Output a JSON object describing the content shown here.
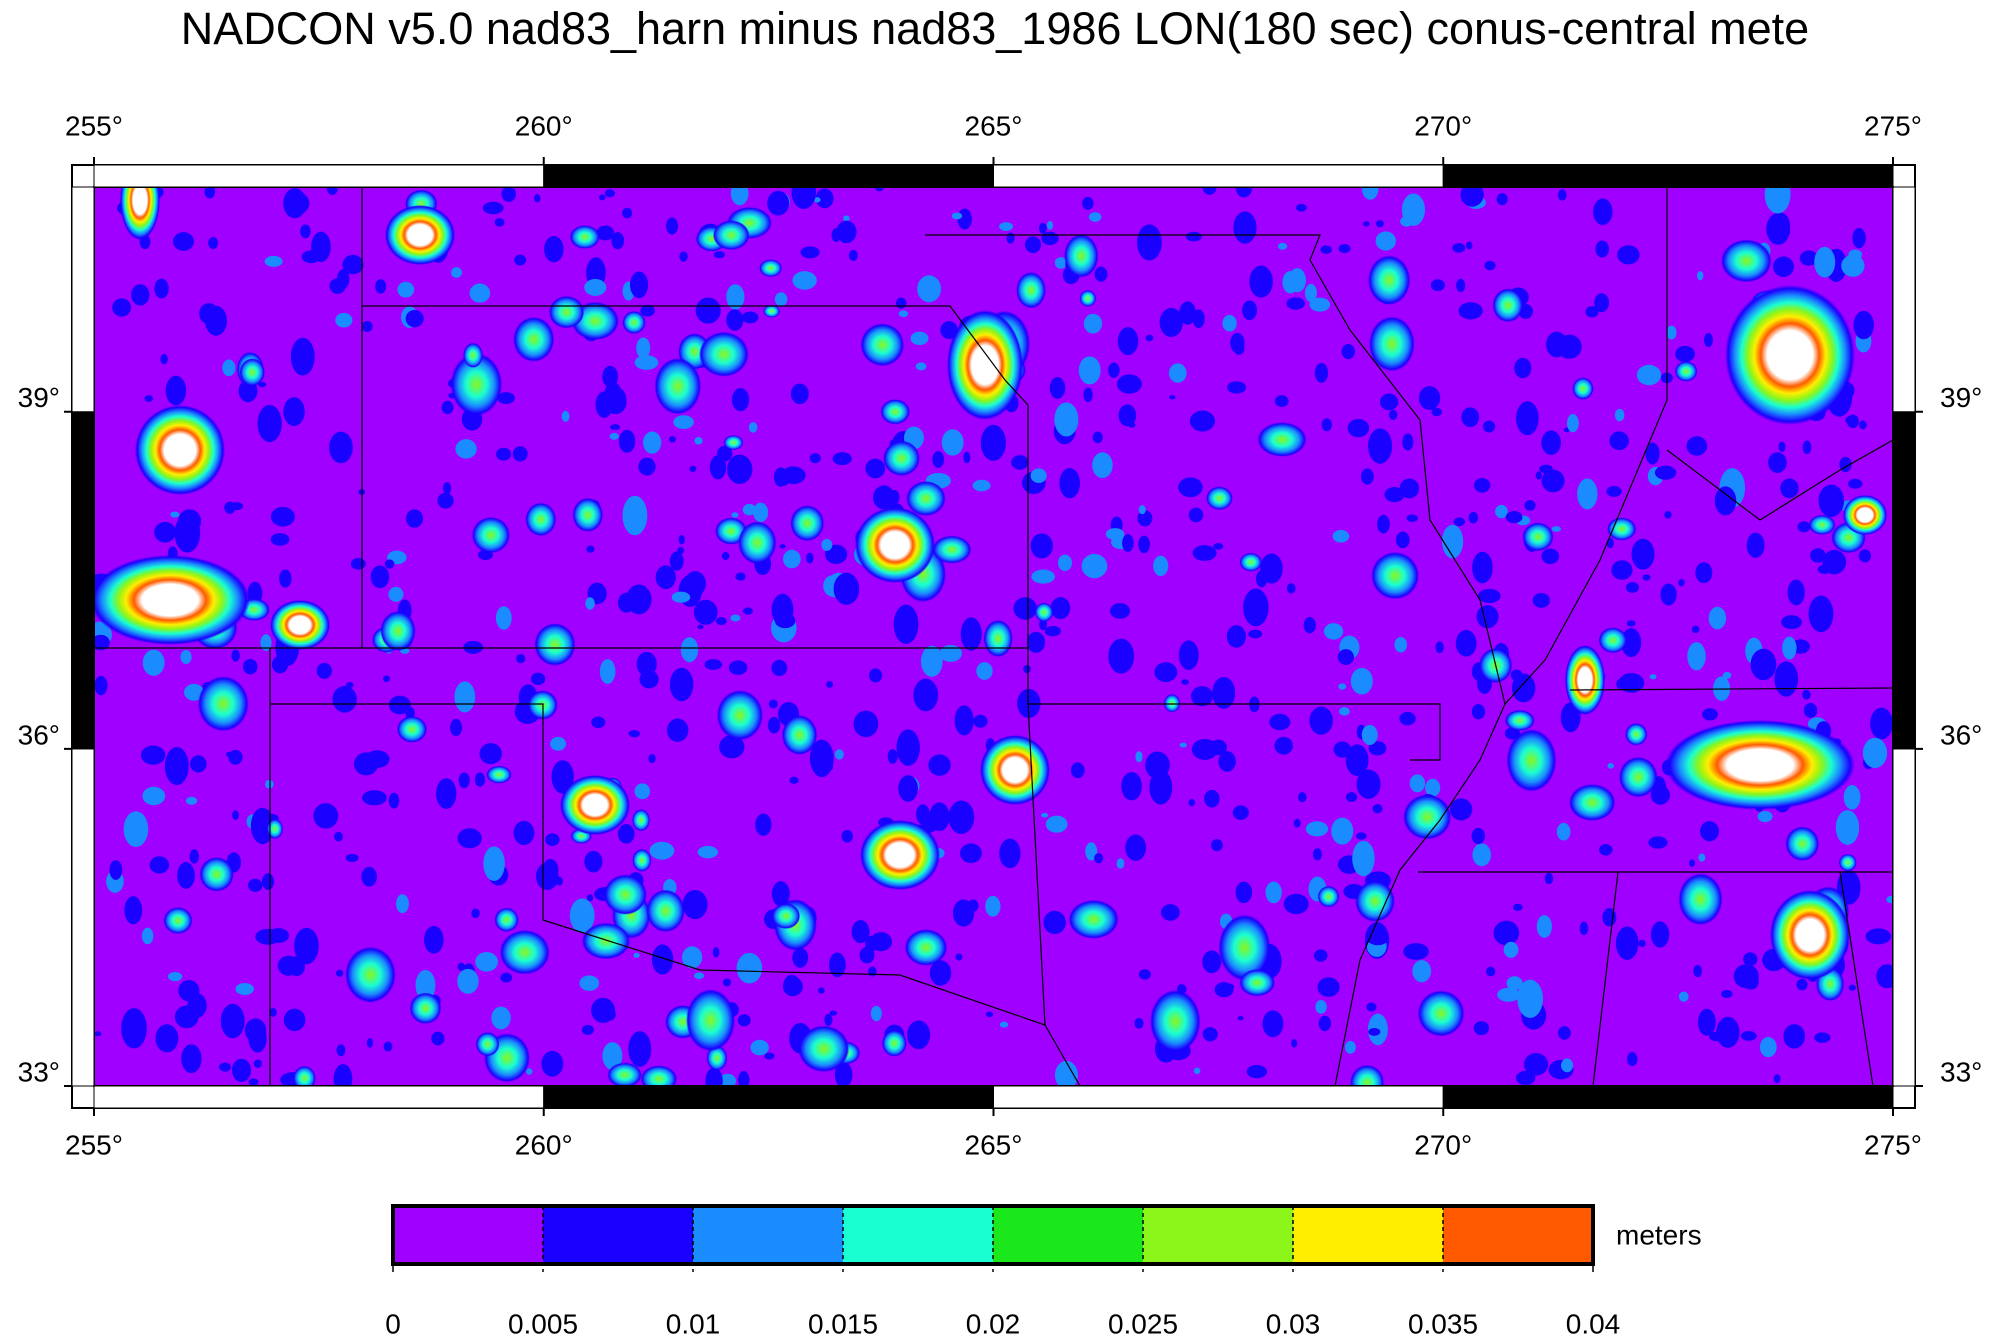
{
  "title": "NADCON v5.0 nad83_harn minus nad83_1986 LON(180 sec) conus-central mete",
  "map": {
    "xlim": [
      255,
      275
    ],
    "ylim": [
      33,
      41
    ],
    "xticks": [
      {
        "value": 255,
        "label": "255°"
      },
      {
        "value": 260,
        "label": "260°"
      },
      {
        "value": 265,
        "label": "265°"
      },
      {
        "value": 270,
        "label": "270°"
      },
      {
        "value": 275,
        "label": "275°"
      }
    ],
    "yticks": [
      {
        "value": 33,
        "label": "33°"
      },
      {
        "value": 36,
        "label": "36°"
      },
      {
        "value": 39,
        "label": "39°"
      }
    ],
    "background_color": "#a000ff"
  },
  "colorbar": {
    "ticks": [
      0,
      0.005,
      0.01,
      0.015,
      0.02,
      0.025,
      0.03,
      0.035,
      0.04
    ],
    "colors": [
      "#a000ff",
      "#1a00ff",
      "#1a8cff",
      "#1affd1",
      "#1ae81a",
      "#8cf51a",
      "#ffee00",
      "#ff5a00"
    ],
    "label": "meters"
  }
}
